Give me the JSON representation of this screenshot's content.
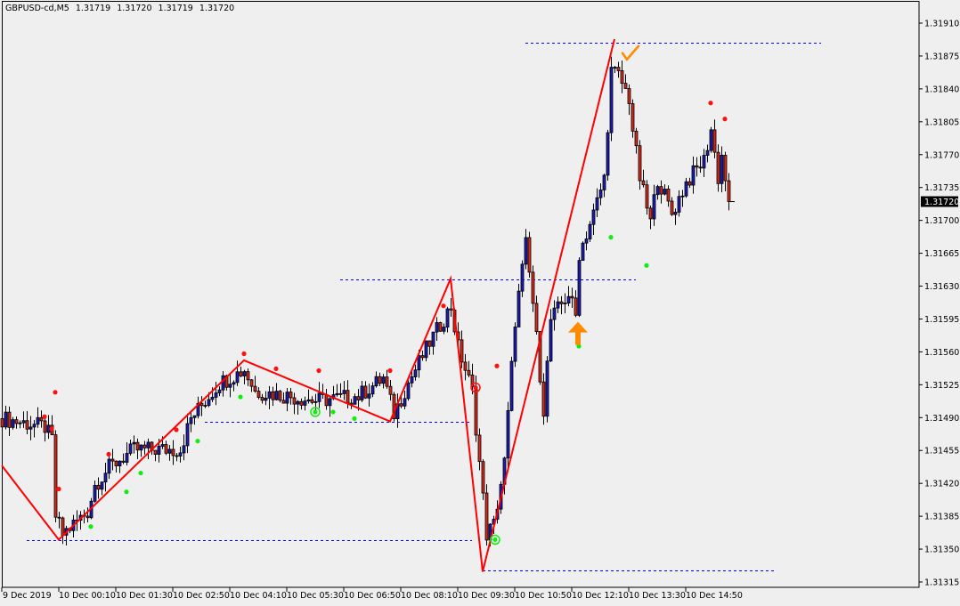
{
  "header": {
    "symbol_timeframe": "GBPUSD-cd,M5",
    "open": "1.31719",
    "high": "1.31720",
    "low": "1.31719",
    "close": "1.31720"
  },
  "colors": {
    "background": "#efefef",
    "bull_body": "#1c1cb4",
    "bear_body": "#d42a1a",
    "outline": "#000000",
    "zigzag": "#ff0000",
    "level_lines": "#0000ff",
    "dot_high": "#ff1010",
    "dot_low": "#10ee10",
    "signal_arrow": "#ff8c00"
  },
  "chart_data": {
    "type": "candlestick",
    "symbol": "GBPUSD-cd",
    "timeframe": "M5",
    "ylim": [
      1.31315,
      1.3191
    ],
    "y_ticks": [
      "1.31910",
      "1.31875",
      "1.31840",
      "1.31805",
      "1.31770",
      "1.31735",
      "1.31700",
      "1.31665",
      "1.31630",
      "1.31595",
      "1.31560",
      "1.31525",
      "1.31490",
      "1.31455",
      "1.31420",
      "1.31385",
      "1.31350",
      "1.31315"
    ],
    "current_price": "1.31720",
    "x_ticks": [
      "9 Dec 2019",
      "10 Dec 00:10",
      "10 Dec 01:30",
      "10 Dec 02:50",
      "10 Dec 04:10",
      "10 Dec 05:30",
      "10 Dec 06:50",
      "10 Dec 08:10",
      "10 Dec 09:30",
      "10 Dec 10:50",
      "10 Dec 12:10",
      "10 Dec 13:30",
      "10 Dec 14:50"
    ],
    "bars_per_x_tick": 16,
    "bar_count": 205,
    "price_path": [
      [
        0,
        1.31489
      ],
      [
        12,
        1.3148
      ],
      [
        14,
        1.31466
      ],
      [
        15,
        1.31385
      ],
      [
        17,
        1.31366
      ],
      [
        24,
        1.3139
      ],
      [
        26,
        1.31418
      ],
      [
        30,
        1.31437
      ],
      [
        37,
        1.31456
      ],
      [
        50,
        1.31456
      ],
      [
        53,
        1.31489
      ],
      [
        61,
        1.31527
      ],
      [
        68,
        1.31541
      ],
      [
        71,
        1.31518
      ],
      [
        80,
        1.31513
      ],
      [
        88,
        1.31508
      ],
      [
        100,
        1.31513
      ],
      [
        107,
        1.31532
      ],
      [
        110,
        1.31494
      ],
      [
        114,
        1.31527
      ],
      [
        120,
        1.3157
      ],
      [
        126,
        1.31608
      ],
      [
        128,
        1.31565
      ],
      [
        132,
        1.31518
      ],
      [
        135,
        1.31404
      ],
      [
        136,
        1.31366
      ],
      [
        138,
        1.31376
      ],
      [
        141,
        1.31442
      ],
      [
        144,
        1.31594
      ],
      [
        147,
        1.31674
      ],
      [
        149,
        1.31612
      ],
      [
        152,
        1.31499
      ],
      [
        154,
        1.31594
      ],
      [
        159,
        1.31622
      ],
      [
        161,
        1.31598
      ],
      [
        162,
        1.31665
      ],
      [
        166,
        1.31707
      ],
      [
        169,
        1.31745
      ],
      [
        171,
        1.31859
      ],
      [
        173,
        1.31854
      ],
      [
        176,
        1.3183
      ],
      [
        177,
        1.31797
      ],
      [
        179,
        1.31745
      ],
      [
        182,
        1.31698
      ],
      [
        184,
        1.31745
      ],
      [
        188,
        1.31707
      ],
      [
        192,
        1.3174
      ],
      [
        197,
        1.31764
      ],
      [
        199,
        1.31797
      ],
      [
        201,
        1.31745
      ],
      [
        202,
        1.31769
      ],
      [
        204,
        1.3172
      ]
    ],
    "zigzag": [
      [
        0,
        1.31439
      ],
      [
        16,
        1.3136
      ],
      [
        68,
        1.31551
      ],
      [
        109,
        1.31486
      ],
      [
        126,
        1.31638
      ],
      [
        135,
        1.31326
      ],
      [
        172,
        1.31893
      ]
    ],
    "levels": [
      {
        "price": 1.3136,
        "from_bar": 7,
        "to_bar": 132
      },
      {
        "price": 1.31486,
        "from_bar": 57,
        "to_bar": 132
      },
      {
        "price": 1.31637,
        "from_bar": 95,
        "to_bar": 178
      },
      {
        "price": 1.31889,
        "from_bar": 147,
        "to_bar": 230
      },
      {
        "price": 1.31327,
        "from_bar": 135,
        "to_bar": 217
      }
    ],
    "high_dots": [
      [
        15,
        1.31517
      ],
      [
        12,
        1.31491
      ],
      [
        14,
        1.31478
      ],
      [
        16,
        1.31414
      ],
      [
        30,
        1.31451
      ],
      [
        49,
        1.31477
      ],
      [
        68,
        1.31558
      ],
      [
        77,
        1.31542
      ],
      [
        89,
        1.3154
      ],
      [
        109,
        1.3154
      ],
      [
        124,
        1.31609
      ],
      [
        139,
        1.31545
      ],
      [
        199,
        1.31825
      ],
      [
        203,
        1.31808
      ]
    ],
    "low_dots": [
      [
        25,
        1.31374
      ],
      [
        35,
        1.31411
      ],
      [
        39,
        1.31431
      ],
      [
        55,
        1.31465
      ],
      [
        67,
        1.31512
      ],
      [
        93,
        1.31496
      ],
      [
        99,
        1.31489
      ],
      [
        162,
        1.31566
      ],
      [
        171,
        1.31682
      ],
      [
        181,
        1.31652
      ]
    ],
    "rings": [
      {
        "bar": 88,
        "price": 1.31496,
        "color": "green"
      },
      {
        "bar": 138.5,
        "price": 1.3136,
        "color": "green"
      },
      {
        "bar": 133,
        "price": 1.31522,
        "color": "red"
      }
    ],
    "buy_arrow": {
      "bar": 162,
      "price": 1.31592
    },
    "check_mark": {
      "bar": 176,
      "price": 1.31878
    }
  }
}
